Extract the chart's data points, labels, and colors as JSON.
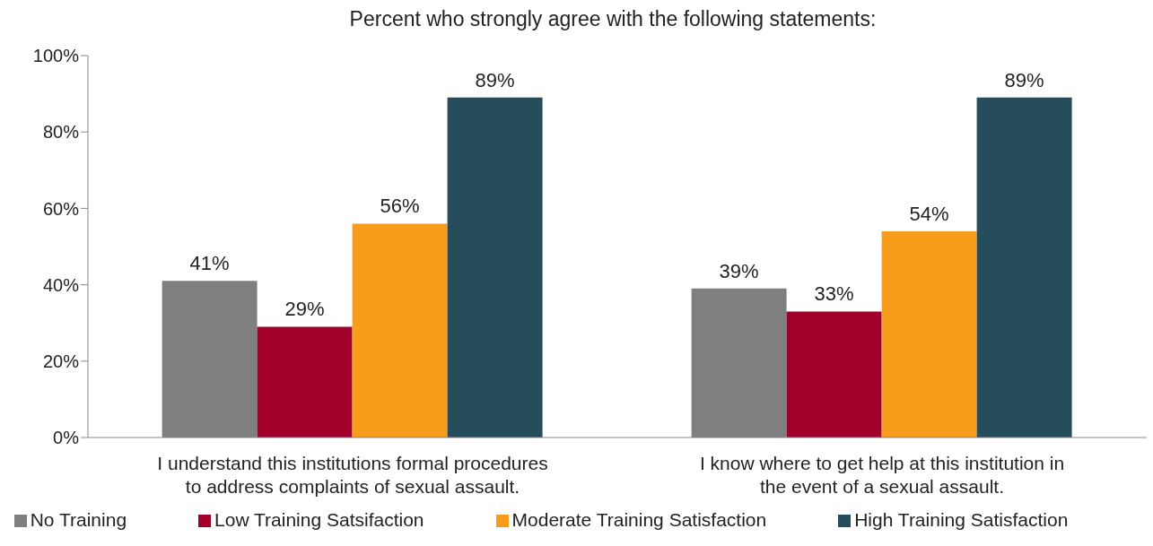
{
  "chart_data": {
    "type": "bar",
    "title": "Percent who strongly agree with the following statements:",
    "categories": [
      "I understand this institutions formal procedures to address complaints of sexual assault.",
      "I know where to get help at this institution in the event of a sexual assault."
    ],
    "series": [
      {
        "name": "No Training",
        "color": "#7f7f7f",
        "values": [
          41,
          39
        ],
        "value_labels": [
          "41%",
          "39%"
        ]
      },
      {
        "name": "Low Training Satsifaction",
        "color": "#a0002a",
        "values": [
          29,
          33
        ],
        "value_labels": [
          "29%",
          "33%"
        ]
      },
      {
        "name": "Moderate Training Satisfaction",
        "color": "#f89c1c",
        "values": [
          56,
          54
        ],
        "value_labels": [
          "56%",
          "54%"
        ]
      },
      {
        "name": "High Training Satisfaction",
        "color": "#264d5c",
        "values": [
          89,
          89
        ],
        "value_labels": [
          "89%",
          "89%"
        ]
      }
    ],
    "ylim": [
      0,
      100
    ],
    "yticks": [
      {
        "value": 0,
        "label": "0%"
      },
      {
        "value": 20,
        "label": "20%"
      },
      {
        "value": 40,
        "label": "40%"
      },
      {
        "value": 60,
        "label": "60%"
      },
      {
        "value": 80,
        "label": "80%"
      },
      {
        "value": 100,
        "label": "100%"
      }
    ],
    "grid": false,
    "legend": "bottom"
  }
}
